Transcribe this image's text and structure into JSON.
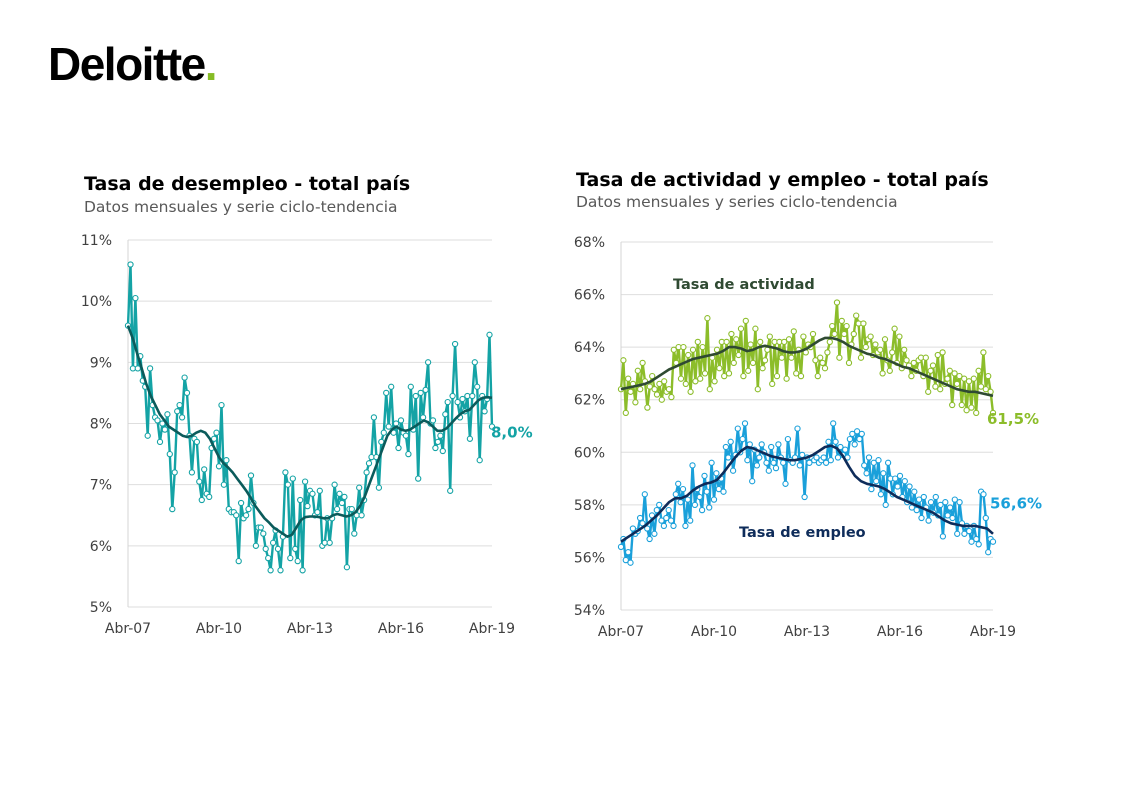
{
  "brand": {
    "name": "Deloitte",
    "dot": ".",
    "dot_color": "#86BC25"
  },
  "colors": {
    "unemployment": "#14A3A5",
    "activity": "#8CBD2A",
    "employment": "#1AA0DA",
    "trend_dark_teal": "#0B5B5B",
    "trend_dark_green": "#2F4A32",
    "trend_navy": "#0E2C5A"
  },
  "chart_data": [
    {
      "type": "line",
      "title": "Tasa de desempleo - total país",
      "subtitle": "Datos mensuales y serie ciclo-tendencia",
      "x_range": [
        "Abr-07",
        "Abr-19"
      ],
      "x_tick_labels": [
        "Abr-07",
        "Abr-10",
        "Abr-13",
        "Abr-16",
        "Abr-19"
      ],
      "y_tick_labels": [
        "5%",
        "6%",
        "7%",
        "8%",
        "9%",
        "10%",
        "11%"
      ],
      "ylim": [
        5,
        11
      ],
      "grid": true,
      "legend": "none",
      "end_label": "8,0%",
      "series": [
        {
          "role": "monthly",
          "markers": true,
          "values": [
            9.6,
            10.6,
            8.9,
            10.05,
            8.9,
            9.1,
            8.7,
            8.6,
            7.8,
            8.9,
            8.3,
            8.1,
            8.05,
            7.7,
            8.0,
            7.9,
            8.15,
            7.5,
            6.6,
            7.2,
            8.2,
            8.3,
            8.1,
            8.75,
            8.5,
            7.8,
            7.2,
            7.75,
            7.7,
            7.05,
            6.75,
            7.25,
            6.85,
            6.8,
            7.6,
            7.75,
            7.85,
            7.3,
            8.3,
            7.0,
            7.4,
            6.6,
            6.55,
            6.55,
            6.5,
            5.75,
            6.7,
            6.45,
            6.5,
            6.6,
            7.15,
            6.7,
            6.0,
            6.3,
            6.3,
            6.2,
            5.95,
            5.8,
            5.6,
            6.05,
            6.25,
            5.95,
            5.6,
            6.15,
            7.2,
            7.0,
            5.8,
            7.1,
            5.95,
            5.75,
            6.75,
            5.6,
            7.05,
            6.65,
            6.9,
            6.85,
            6.5,
            6.55,
            6.9,
            6.0,
            6.05,
            6.45,
            6.05,
            6.45,
            7.0,
            6.6,
            6.85,
            6.7,
            6.8,
            5.65,
            6.6,
            6.6,
            6.2,
            6.5,
            6.95,
            6.5,
            6.75,
            7.2,
            7.35,
            7.45,
            8.1,
            7.45,
            6.95,
            7.7,
            7.85,
            8.5,
            7.95,
            8.6,
            7.85,
            8.0,
            7.6,
            8.05,
            7.85,
            7.8,
            7.5,
            8.6,
            7.9,
            8.45,
            7.1,
            8.5,
            8.1,
            8.55,
            9.0,
            8.0,
            8.05,
            7.6,
            7.7,
            7.8,
            7.55,
            8.15,
            8.35,
            6.9,
            8.45,
            9.3,
            8.35,
            8.1,
            8.4,
            8.2,
            8.45,
            7.75,
            8.45,
            9.0,
            8.6,
            7.4,
            8.45,
            8.2,
            8.4,
            9.45,
            7.95
          ]
        },
        {
          "role": "trend",
          "markers": false,
          "values": [
            9.6,
            9.4,
            9.15,
            8.9,
            8.65,
            8.45,
            8.3,
            8.15,
            8.05,
            7.95,
            7.9,
            7.85,
            7.8,
            7.78,
            7.8,
            7.85,
            7.88,
            7.85,
            7.75,
            7.6,
            7.45,
            7.35,
            7.28,
            7.2,
            7.1,
            7.0,
            6.9,
            6.78,
            6.65,
            6.55,
            6.45,
            6.38,
            6.3,
            6.25,
            6.2,
            6.15,
            6.18,
            6.3,
            6.42,
            6.47,
            6.48,
            6.48,
            6.47,
            6.45,
            6.45,
            6.5,
            6.52,
            6.5,
            6.48,
            6.5,
            6.55,
            6.65,
            6.8,
            7.0,
            7.2,
            7.4,
            7.6,
            7.8,
            7.9,
            7.95,
            7.9,
            7.88,
            7.9,
            7.95,
            8.0,
            8.05,
            8.02,
            7.95,
            7.88,
            7.88,
            7.92,
            8.0,
            8.08,
            8.15,
            8.2,
            8.22,
            8.3,
            8.38,
            8.42,
            8.43,
            8.42
          ]
        }
      ]
    },
    {
      "type": "line",
      "title": "Tasa de actividad y empleo - total país",
      "subtitle": "Datos mensuales y series ciclo-tendencia",
      "x_range": [
        "Abr-07",
        "Abr-19"
      ],
      "x_tick_labels": [
        "Abr-07",
        "Abr-10",
        "Abr-13",
        "Abr-16",
        "Abr-19"
      ],
      "y_tick_labels": [
        "54%",
        "56%",
        "58%",
        "60%",
        "62%",
        "64%",
        "66%",
        "68%"
      ],
      "ylim": [
        54,
        68
      ],
      "grid": true,
      "legend": "none",
      "series": [
        {
          "name": "Tasa de actividad",
          "role": "monthly",
          "markers": true,
          "end_label": "61,5%",
          "values": [
            62.4,
            63.5,
            61.5,
            62.8,
            62.3,
            62.6,
            61.9,
            63.1,
            62.4,
            63.4,
            62.7,
            61.7,
            62.5,
            62.9,
            62.4,
            62.2,
            62.6,
            62.0,
            62.7,
            62.3,
            62.4,
            62.1,
            63.9,
            63.4,
            64.0,
            62.8,
            64.0,
            62.6,
            63.7,
            62.3,
            63.9,
            62.7,
            64.2,
            62.8,
            64.0,
            63.0,
            65.1,
            62.4,
            63.6,
            62.7,
            63.9,
            63.2,
            64.2,
            62.9,
            64.2,
            63.0,
            64.5,
            63.4,
            64.3,
            63.7,
            64.7,
            62.9,
            65.0,
            63.1,
            64.1,
            63.4,
            64.7,
            62.4,
            64.2,
            63.2,
            63.5,
            63.9,
            64.4,
            62.6,
            64.2,
            62.9,
            64.2,
            63.6,
            64.2,
            62.8,
            64.3,
            63.6,
            64.6,
            63.0,
            63.9,
            62.9,
            64.4,
            63.8,
            64.1,
            64.0,
            64.5,
            63.5,
            62.9,
            63.6,
            63.4,
            63.2,
            63.8,
            64.2,
            64.8,
            64.5,
            65.7,
            63.6,
            65.0,
            64.5,
            64.8,
            63.4,
            64.1,
            64.5,
            65.2,
            64.9,
            63.6,
            64.9,
            64.0,
            64.3,
            64.4,
            63.7,
            64.1,
            63.8,
            63.9,
            63.0,
            64.3,
            63.5,
            63.1,
            63.8,
            64.7,
            63.4,
            64.4,
            63.2,
            63.9,
            63.5,
            63.3,
            62.9,
            63.4,
            63.1,
            63.5,
            63.6,
            62.9,
            63.6,
            62.3,
            63.1,
            63.3,
            62.5,
            63.7,
            62.4,
            63.8,
            62.6,
            62.8,
            63.1,
            61.8,
            63.0,
            62.6,
            62.9,
            61.8,
            62.8,
            61.6,
            62.7,
            61.7,
            62.8,
            61.5,
            63.1,
            62.5,
            63.8,
            62.4,
            62.9,
            62.3,
            61.5
          ]
        },
        {
          "name": "",
          "role": "trend-actividad",
          "markers": false,
          "values": [
            62.4,
            62.45,
            62.5,
            62.55,
            62.6,
            62.7,
            62.85,
            63.0,
            63.15,
            63.25,
            63.35,
            63.45,
            63.55,
            63.6,
            63.65,
            63.7,
            63.75,
            63.85,
            64.0,
            64.0,
            63.95,
            63.85,
            63.9,
            64.0,
            64.05,
            64.0,
            63.95,
            63.85,
            63.8,
            63.8,
            63.85,
            63.95,
            64.1,
            64.25,
            64.35,
            64.35,
            64.3,
            64.2,
            64.05,
            63.95,
            63.85,
            63.75,
            63.7,
            63.6,
            63.55,
            63.45,
            63.35,
            63.25,
            63.2,
            63.1,
            63.0,
            62.9,
            62.8,
            62.7,
            62.6,
            62.5,
            62.4,
            62.35,
            62.3,
            62.3,
            62.25,
            62.2,
            62.15
          ]
        },
        {
          "name": "Tasa de empleo",
          "role": "monthly",
          "markers": true,
          "end_label": "56,6%",
          "values": [
            56.4,
            56.7,
            55.9,
            56.2,
            55.8,
            57.1,
            56.9,
            57.0,
            57.5,
            57.3,
            58.4,
            57.1,
            56.7,
            57.6,
            56.9,
            57.8,
            58.0,
            57.4,
            57.2,
            57.5,
            57.8,
            57.4,
            57.2,
            58.4,
            58.8,
            58.1,
            58.6,
            57.2,
            58.2,
            57.4,
            59.5,
            58.0,
            58.6,
            58.3,
            57.8,
            59.1,
            58.5,
            57.9,
            59.6,
            58.2,
            59.2,
            58.6,
            59.0,
            58.5,
            60.2,
            59.8,
            60.4,
            59.3,
            59.9,
            60.9,
            60.0,
            60.5,
            61.1,
            59.7,
            60.3,
            58.9,
            60.1,
            59.5,
            59.8,
            60.3,
            60.0,
            59.6,
            59.3,
            60.2,
            59.6,
            59.4,
            60.3,
            59.8,
            59.6,
            58.8,
            60.5,
            59.7,
            59.6,
            59.8,
            60.9,
            59.5,
            59.9,
            58.3,
            59.8,
            59.6,
            59.8,
            59.7,
            59.8,
            59.6,
            59.7,
            59.8,
            59.6,
            60.4,
            59.7,
            61.1,
            60.4,
            59.8,
            60.2,
            59.9,
            60.1,
            59.8,
            60.5,
            60.7,
            60.3,
            60.8,
            60.5,
            60.7,
            59.5,
            59.2,
            59.8,
            58.6,
            59.6,
            58.9,
            59.7,
            58.4,
            59.2,
            58.0,
            59.6,
            59.0,
            58.4,
            59.0,
            58.7,
            59.1,
            58.3,
            58.9,
            58.1,
            58.7,
            57.9,
            58.5,
            57.8,
            58.2,
            57.5,
            58.3,
            57.9,
            57.4,
            58.1,
            57.7,
            58.3,
            57.6,
            58.0,
            56.8,
            58.1,
            57.6,
            57.9,
            57.5,
            58.2,
            56.9,
            58.1,
            57.3,
            56.9,
            57.2,
            57.0,
            56.6,
            57.2,
            56.7,
            56.5,
            58.5,
            58.4,
            57.5,
            56.2,
            56.7,
            56.6
          ]
        },
        {
          "name": "",
          "role": "trend-empleo",
          "markers": false,
          "values": [
            56.6,
            56.75,
            56.9,
            57.05,
            57.2,
            57.4,
            57.6,
            57.85,
            58.1,
            58.25,
            58.25,
            58.35,
            58.55,
            58.7,
            58.8,
            58.85,
            58.95,
            59.2,
            59.5,
            59.8,
            60.05,
            60.2,
            60.15,
            60.05,
            59.95,
            59.85,
            59.8,
            59.75,
            59.7,
            59.7,
            59.75,
            59.8,
            59.9,
            60.05,
            60.2,
            60.25,
            60.15,
            59.85,
            59.45,
            59.1,
            58.9,
            58.8,
            58.75,
            58.7,
            58.6,
            58.45,
            58.3,
            58.2,
            58.1,
            58.0,
            57.9,
            57.8,
            57.7,
            57.55,
            57.4,
            57.3,
            57.25,
            57.2,
            57.2,
            57.2,
            57.15,
            57.1,
            56.9
          ]
        }
      ]
    }
  ]
}
